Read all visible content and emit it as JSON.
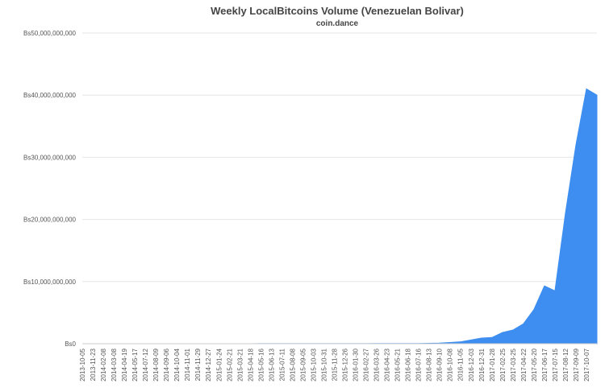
{
  "chart_data": {
    "type": "area",
    "title": "Weekly LocalBitcoins Volume (Venezuelan Bolivar)",
    "subtitle": "coin.dance",
    "color": "#3d8ef0",
    "grid": true,
    "categories": [
      "2013-10-05",
      "2013-11-23",
      "2014-02-08",
      "2014-03-08",
      "2014-04-19",
      "2014-05-17",
      "2014-07-12",
      "2014-08-09",
      "2014-09-06",
      "2014-10-04",
      "2014-11-01",
      "2014-11-29",
      "2014-12-27",
      "2015-01-24",
      "2015-02-21",
      "2015-03-21",
      "2015-04-18",
      "2015-05-16",
      "2015-06-13",
      "2015-07-11",
      "2015-08-08",
      "2015-09-05",
      "2015-10-03",
      "2015-10-31",
      "2015-11-28",
      "2015-12-26",
      "2016-01-30",
      "2016-02-27",
      "2016-03-26",
      "2016-04-23",
      "2016-05-21",
      "2016-06-18",
      "2016-07-16",
      "2016-08-13",
      "2016-09-10",
      "2016-10-08",
      "2016-11-05",
      "2016-12-03",
      "2016-12-31",
      "2017-01-28",
      "2017-02-25",
      "2017-03-25",
      "2017-04-22",
      "2017-05-20",
      "2017-06-17",
      "2017-07-15",
      "2017-08-12",
      "2017-09-09",
      "2017-10-07",
      null
    ],
    "values": [
      500000,
      800000,
      1000000,
      1200000,
      1500000,
      1800000,
      2000000,
      2500000,
      3000000,
      3500000,
      4000000,
      4500000,
      5000000,
      5500000,
      6000000,
      7000000,
      8000000,
      9000000,
      10000000,
      11000000,
      12000000,
      13000000,
      14000000,
      15000000,
      16000000,
      18000000,
      20000000,
      22000000,
      24000000,
      26000000,
      28000000,
      30000000,
      40000000,
      60000000,
      100000000,
      200000000,
      300000000,
      600000000,
      900000000,
      1000000000,
      1800000000,
      2200000000,
      3200000000,
      5500000000,
      9300000000,
      8500000000,
      21000000000,
      32000000000,
      41000000000,
      40000000000
    ],
    "ylim": [
      0,
      50000000000
    ],
    "yticks": [
      {
        "value": 0,
        "label": "Bs0"
      },
      {
        "value": 10000000000,
        "label": "Bs10,000,000,000"
      },
      {
        "value": 20000000000,
        "label": "Bs20,000,000,000"
      },
      {
        "value": 30000000000,
        "label": "Bs30,000,000,000"
      },
      {
        "value": 40000000000,
        "label": "Bs40,000,000,000"
      },
      {
        "value": 50000000000,
        "label": "Bs50,000,000,000"
      }
    ]
  }
}
